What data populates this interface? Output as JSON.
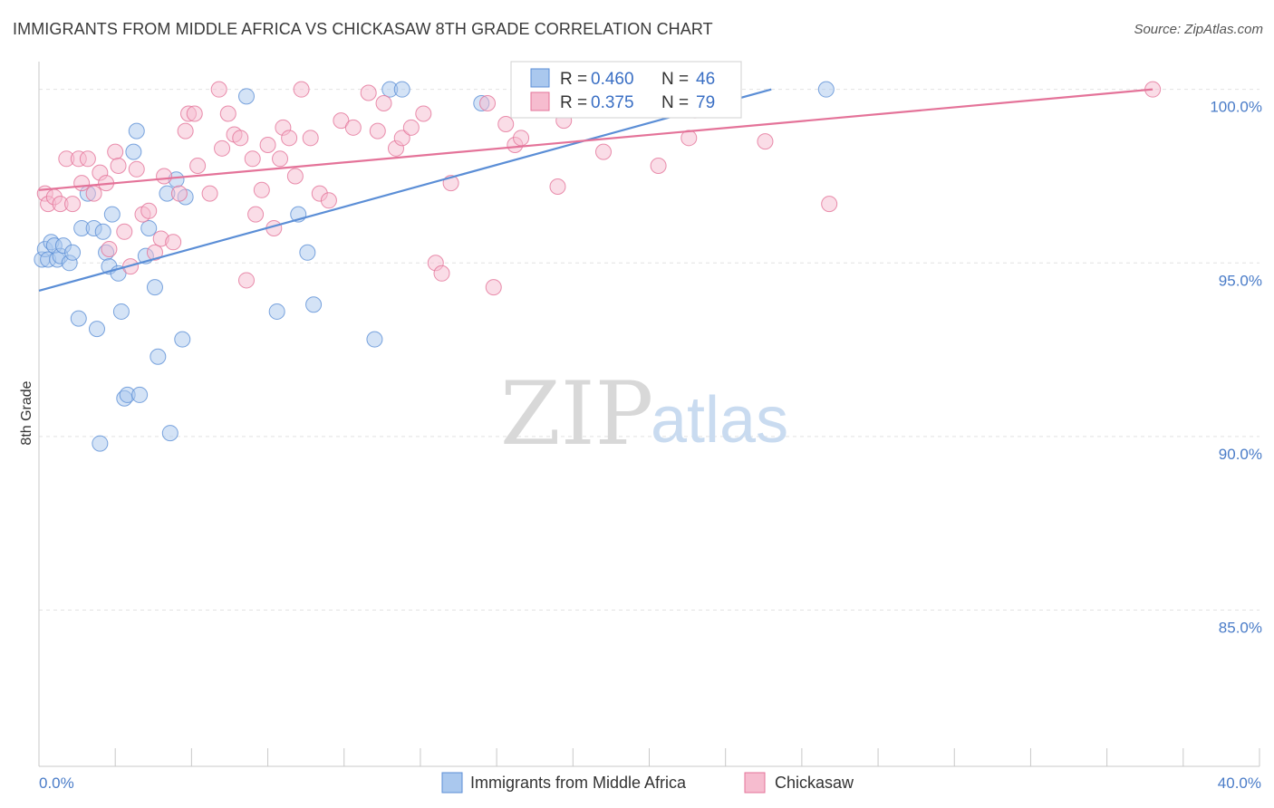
{
  "title": "IMMIGRANTS FROM MIDDLE AFRICA VS CHICKASAW 8TH GRADE CORRELATION CHART",
  "source": "Source: ZipAtlas.com",
  "watermark": {
    "zip": "ZIP",
    "atlas": "atlas"
  },
  "chart_data": {
    "type": "scatter",
    "title": "IMMIGRANTS FROM MIDDLE AFRICA VS CHICKASAW 8TH GRADE CORRELATION CHART",
    "xlabel": "",
    "ylabel": "8th Grade",
    "xlim": [
      0,
      40
    ],
    "ylim": [
      80.5,
      100.8
    ],
    "x_tick_labels": {
      "left": "0.0%",
      "right": "40.0%"
    },
    "y_ticks": [
      {
        "value": 100,
        "label": "100.0%"
      },
      {
        "value": 95,
        "label": "95.0%"
      },
      {
        "value": 90,
        "label": "90.0%"
      },
      {
        "value": 85,
        "label": "85.0%"
      }
    ],
    "legend": [
      {
        "r_label": "R =",
        "r_value": "0.460",
        "n_label": "N =",
        "n_value": "46"
      },
      {
        "r_label": "R =",
        "r_value": "0.375",
        "n_label": "N =",
        "n_value": "79"
      }
    ],
    "series": [
      {
        "name": "Immigrants from Middle Africa",
        "color": "#5b8ed6",
        "fill": "#aac8ee",
        "trend": {
          "x0": 0,
          "y0": 94.2,
          "x1": 24.0,
          "y1": 100.0
        },
        "points": [
          [
            0.1,
            95.1
          ],
          [
            0.2,
            95.4
          ],
          [
            0.3,
            95.1
          ],
          [
            0.4,
            95.6
          ],
          [
            0.5,
            95.5
          ],
          [
            0.6,
            95.1
          ],
          [
            0.7,
            95.2
          ],
          [
            0.8,
            95.5
          ],
          [
            1.0,
            95.0
          ],
          [
            1.1,
            95.3
          ],
          [
            1.3,
            93.4
          ],
          [
            1.4,
            96.0
          ],
          [
            1.6,
            97.0
          ],
          [
            1.8,
            96.0
          ],
          [
            1.9,
            93.1
          ],
          [
            2.0,
            89.8
          ],
          [
            2.1,
            95.9
          ],
          [
            2.2,
            95.3
          ],
          [
            2.3,
            94.9
          ],
          [
            2.4,
            96.4
          ],
          [
            2.6,
            94.7
          ],
          [
            2.7,
            93.6
          ],
          [
            2.8,
            91.1
          ],
          [
            2.9,
            91.2
          ],
          [
            3.1,
            98.2
          ],
          [
            3.2,
            98.8
          ],
          [
            3.3,
            91.2
          ],
          [
            3.5,
            95.2
          ],
          [
            3.6,
            96.0
          ],
          [
            3.8,
            94.3
          ],
          [
            3.9,
            92.3
          ],
          [
            4.2,
            97.0
          ],
          [
            4.3,
            90.1
          ],
          [
            4.5,
            97.4
          ],
          [
            4.7,
            92.8
          ],
          [
            4.8,
            96.9
          ],
          [
            6.8,
            99.8
          ],
          [
            7.8,
            93.6
          ],
          [
            8.5,
            96.4
          ],
          [
            8.8,
            95.3
          ],
          [
            9.0,
            93.8
          ],
          [
            11.0,
            92.8
          ],
          [
            11.5,
            100.0
          ],
          [
            11.9,
            100.0
          ],
          [
            14.5,
            99.6
          ],
          [
            25.8,
            100.0
          ]
        ]
      },
      {
        "name": "Chickasaw",
        "color": "#e47399",
        "fill": "#f6bccf",
        "trend": {
          "x0": 0,
          "y0": 97.1,
          "x1": 36.5,
          "y1": 100.0
        },
        "points": [
          [
            0.2,
            97.0
          ],
          [
            0.3,
            96.7
          ],
          [
            0.5,
            96.9
          ],
          [
            0.7,
            96.7
          ],
          [
            0.9,
            98.0
          ],
          [
            1.1,
            96.7
          ],
          [
            1.3,
            98.0
          ],
          [
            1.4,
            97.3
          ],
          [
            1.6,
            98.0
          ],
          [
            1.8,
            97.0
          ],
          [
            2.0,
            97.6
          ],
          [
            2.2,
            97.3
          ],
          [
            2.3,
            95.4
          ],
          [
            2.5,
            98.2
          ],
          [
            2.6,
            97.8
          ],
          [
            2.8,
            95.9
          ],
          [
            3.0,
            94.9
          ],
          [
            3.2,
            97.7
          ],
          [
            3.4,
            96.4
          ],
          [
            3.6,
            96.5
          ],
          [
            3.8,
            95.3
          ],
          [
            4.0,
            95.7
          ],
          [
            4.1,
            97.5
          ],
          [
            4.4,
            95.6
          ],
          [
            4.6,
            97.0
          ],
          [
            4.8,
            98.8
          ],
          [
            4.9,
            99.3
          ],
          [
            5.1,
            99.3
          ],
          [
            5.2,
            97.8
          ],
          [
            5.6,
            97.0
          ],
          [
            5.9,
            100.0
          ],
          [
            6.0,
            98.3
          ],
          [
            6.2,
            99.3
          ],
          [
            6.4,
            98.7
          ],
          [
            6.6,
            98.6
          ],
          [
            6.8,
            94.5
          ],
          [
            7.0,
            98.0
          ],
          [
            7.1,
            96.4
          ],
          [
            7.3,
            97.1
          ],
          [
            7.5,
            98.4
          ],
          [
            7.7,
            96.0
          ],
          [
            7.9,
            98.0
          ],
          [
            8.0,
            98.9
          ],
          [
            8.2,
            98.6
          ],
          [
            8.4,
            97.5
          ],
          [
            8.6,
            100.0
          ],
          [
            8.9,
            98.6
          ],
          [
            9.2,
            97.0
          ],
          [
            9.5,
            96.8
          ],
          [
            9.9,
            99.1
          ],
          [
            10.3,
            98.9
          ],
          [
            10.8,
            99.9
          ],
          [
            11.1,
            98.8
          ],
          [
            11.3,
            99.6
          ],
          [
            11.7,
            98.3
          ],
          [
            11.9,
            98.6
          ],
          [
            12.2,
            98.9
          ],
          [
            12.6,
            99.3
          ],
          [
            13.0,
            95.0
          ],
          [
            13.2,
            94.7
          ],
          [
            13.5,
            97.3
          ],
          [
            14.7,
            99.6
          ],
          [
            14.9,
            94.3
          ],
          [
            15.3,
            99.0
          ],
          [
            15.6,
            98.4
          ],
          [
            15.8,
            98.6
          ],
          [
            16.6,
            100.0
          ],
          [
            17.0,
            97.2
          ],
          [
            17.2,
            99.1
          ],
          [
            18.0,
            100.0
          ],
          [
            18.5,
            98.2
          ],
          [
            19.0,
            99.8
          ],
          [
            20.3,
            97.8
          ],
          [
            21.1,
            100.0
          ],
          [
            21.3,
            98.6
          ],
          [
            21.5,
            99.4
          ],
          [
            23.8,
            98.5
          ],
          [
            25.9,
            96.7
          ],
          [
            36.5,
            100.0
          ]
        ]
      }
    ]
  }
}
